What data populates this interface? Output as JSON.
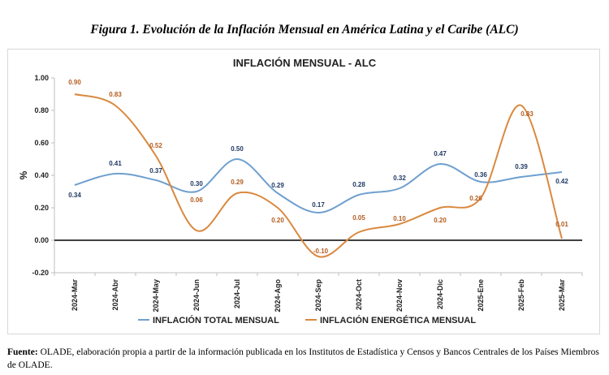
{
  "figure_title": "Figura 1. Evolución de la Inflación Mensual en América Latina y el Caribe (ALC)",
  "source": {
    "label": "Fuente:",
    "text": " OLADE, elaboración propia a partir de la información publicada en los Institutos de Estadística y Censos y Bancos Centrales de los Países Miembros de OLADE."
  },
  "chart_data": {
    "type": "line",
    "title": "INFLACIÓN MENSUAL - ALC",
    "ylabel": "%",
    "xlabel": "",
    "ylim": [
      -0.2,
      1.0
    ],
    "y_ticks": [
      "-0.20",
      "0.00",
      "0.20",
      "0.40",
      "0.60",
      "0.80",
      "1.00"
    ],
    "categories": [
      "2024-Mar",
      "2024-Abr",
      "2024-May",
      "2024-Jun",
      "2024-Jul",
      "2024-Ago",
      "2024-Sep",
      "2024-Oct",
      "2024-Nov",
      "2024-Dic",
      "2025-Ene",
      "2025-Feb",
      "2025-Mar"
    ],
    "legend_position": "bottom",
    "series": [
      {
        "name": "INFLACIÓN TOTAL MENSUAL",
        "color": "#6fa0cf",
        "label_color": "#1f3864",
        "values": [
          0.34,
          0.41,
          0.37,
          0.3,
          0.5,
          0.29,
          0.17,
          0.28,
          0.32,
          0.47,
          0.36,
          0.39,
          0.42
        ],
        "labels": [
          "0.34",
          "0.41",
          "0.37",
          "0.30",
          "0.50",
          "0.29",
          "0.17",
          "0.28",
          "0.32",
          "0.47",
          "0.36",
          "0.39",
          "0.42"
        ]
      },
      {
        "name": "INFLACIÓN ENERGÉTICA MENSUAL",
        "color": "#d9893f",
        "label_color": "#b35c1e",
        "values": [
          0.9,
          0.83,
          0.52,
          0.06,
          0.29,
          0.2,
          -0.1,
          0.05,
          0.1,
          0.2,
          0.26,
          0.83,
          0.01
        ],
        "labels": [
          "0.90",
          "0.83",
          "0.52",
          "0.06",
          "0.29",
          "0.20",
          "-0.10",
          "0.05",
          "0.10",
          "0.20",
          "0.26",
          "0.83",
          "0.01"
        ]
      }
    ]
  }
}
